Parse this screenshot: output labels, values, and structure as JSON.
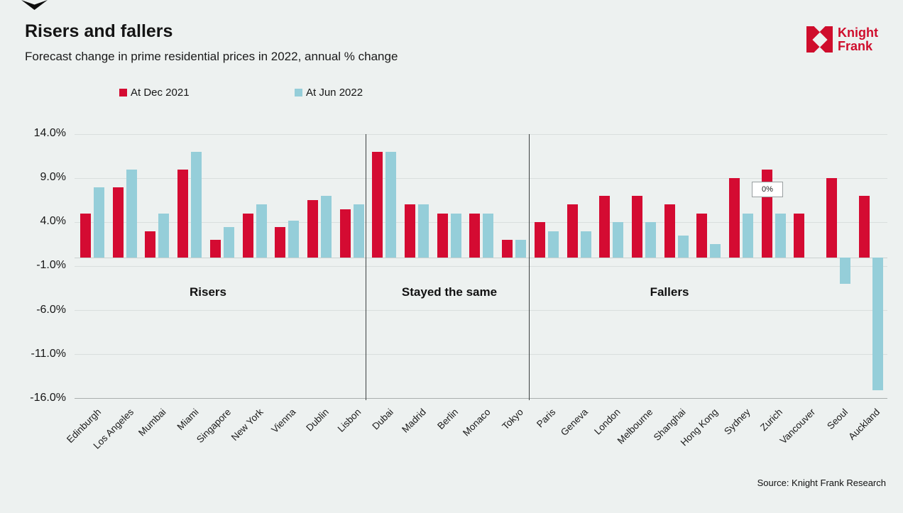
{
  "page": {
    "title": "Risers and fallers",
    "subtitle": "Forecast change in prime residential prices in 2022, annual % change",
    "source": "Source: Knight Frank Research",
    "logo": {
      "line1": "Knight",
      "line2": "Frank",
      "brand_color": "#cf0d2c"
    }
  },
  "colors": {
    "background": "#edf1f0",
    "series_dec_2021": "#d40b32",
    "series_jun_2022": "#95ced9",
    "divider": "#3c4141",
    "gridline": "#d9dedd"
  },
  "chart_data": {
    "type": "bar",
    "title": "Risers and fallers",
    "subtitle": "Forecast change in prime residential prices in 2022, annual % change",
    "ylabel": "annual % change",
    "ylim": [
      -16,
      14
    ],
    "grid": true,
    "legend_position": "top",
    "categories": [
      "Edinburgh",
      "Los Angeles",
      "Mumbai",
      "Miami",
      "Singapore",
      "New York",
      "Vienna",
      "Dublin",
      "Lisbon",
      "Dubai",
      "Madrid",
      "Berlin",
      "Monaco",
      "Tokyo",
      "Paris",
      "Geneva",
      "London",
      "Melbourne",
      "Shanghai",
      "Hong Kong",
      "Sydney",
      "Zurich",
      "Vancouver",
      "Seoul",
      "Auckland"
    ],
    "series": [
      {
        "name": "At Dec 2021",
        "color": "#d40b32",
        "values": [
          5,
          8,
          3,
          10,
          2,
          5,
          3.5,
          6.5,
          5.5,
          12,
          6,
          5,
          5,
          2,
          4,
          6,
          7,
          7,
          6,
          5,
          9,
          10,
          5,
          9,
          7
        ]
      },
      {
        "name": "At Jun 2022",
        "color": "#95ced9",
        "values": [
          8,
          10,
          5,
          12,
          3.5,
          6,
          4.2,
          7,
          6,
          12,
          6,
          5,
          5,
          2,
          3,
          3,
          4,
          4,
          2.5,
          1.5,
          5,
          5,
          0,
          -3,
          -15
        ]
      }
    ],
    "yticks": [
      {
        "value": 14,
        "label": "14.0%"
      },
      {
        "value": 9,
        "label": "9.0%"
      },
      {
        "value": 4,
        "label": "4.0%"
      },
      {
        "value": -1,
        "label": "-1.0%"
      },
      {
        "value": -6,
        "label": "-6.0%"
      },
      {
        "value": -11,
        "label": "-11.0%"
      },
      {
        "value": -16,
        "label": "-16.0%"
      }
    ],
    "sections": [
      {
        "label": "Risers",
        "from": "Edinburgh",
        "to": "Lisbon"
      },
      {
        "label": "Stayed the same",
        "from": "Dubai",
        "to": "Tokyo"
      },
      {
        "label": "Fallers",
        "from": "Paris",
        "to": "Auckland"
      }
    ],
    "annotations": [
      {
        "text": "0%",
        "category": "Vancouver",
        "series": "At Jun 2022"
      }
    ]
  }
}
